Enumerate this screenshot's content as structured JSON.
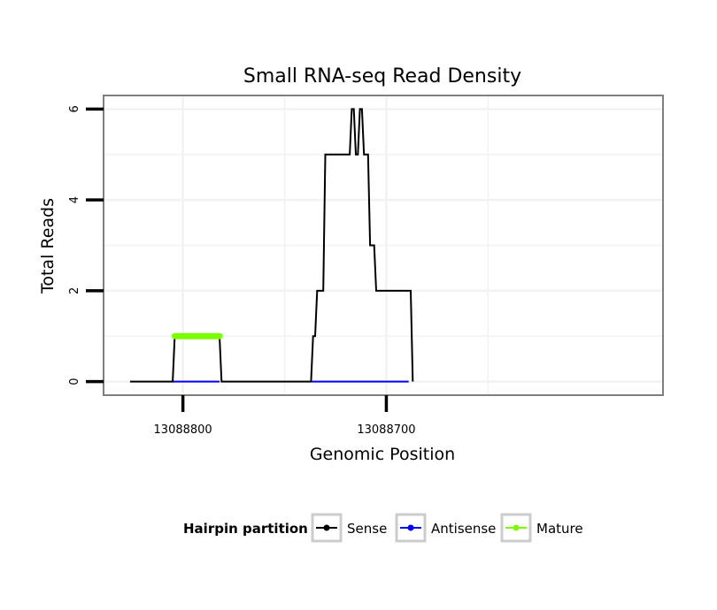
{
  "chart_data": {
    "type": "line",
    "title": "Small RNA-seq Read Density",
    "xlabel": "Genomic Position",
    "ylabel": "Total Reads",
    "x_reversed": true,
    "xlim": [
      13088839,
      13088564
    ],
    "ylim": [
      -0.3,
      6.3
    ],
    "x_ticks": [
      13088800,
      13088700
    ],
    "x_tick_labels": [
      "13088800",
      "13088700"
    ],
    "y_ticks": [
      0,
      2,
      4,
      6
    ],
    "y_tick_labels": [
      "0",
      "2",
      "4",
      "6"
    ],
    "grid": true,
    "legend": {
      "title": "Hairpin partition",
      "position": "bottom",
      "entries": [
        {
          "name": "Sense",
          "color": "#000000"
        },
        {
          "name": "Antisense",
          "color": "#0000ff"
        },
        {
          "name": "Mature",
          "color": "#7cfc00"
        }
      ]
    },
    "series": [
      {
        "name": "Sense",
        "color": "#000000",
        "x": [
          13088826,
          13088805,
          13088804,
          13088782,
          13088781,
          13088737,
          13088736,
          13088735,
          13088734,
          13088731,
          13088730,
          13088718,
          13088717,
          13088716,
          13088715,
          13088714,
          13088713,
          13088712,
          13088711,
          13088709,
          13088708,
          13088706,
          13088705,
          13088704,
          13088703,
          13088688,
          13088687,
          13088687
        ],
        "y": [
          0,
          0,
          1,
          1,
          0,
          0,
          1,
          1,
          2,
          2,
          5,
          5,
          6,
          6,
          5,
          5,
          6,
          6,
          5,
          5,
          3,
          3,
          2,
          2,
          2,
          2,
          0,
          0
        ]
      },
      {
        "name": "Antisense",
        "color": "#0000ff",
        "x": [
          13088805,
          13088782,
          13088782,
          13088737,
          13088737,
          13088689
        ],
        "y": [
          0,
          0,
          null,
          null,
          0,
          0
        ]
      },
      {
        "name": "Mature",
        "color": "#7cfc00",
        "x": [
          13088804,
          13088782
        ],
        "y": [
          1,
          1
        ]
      }
    ]
  }
}
